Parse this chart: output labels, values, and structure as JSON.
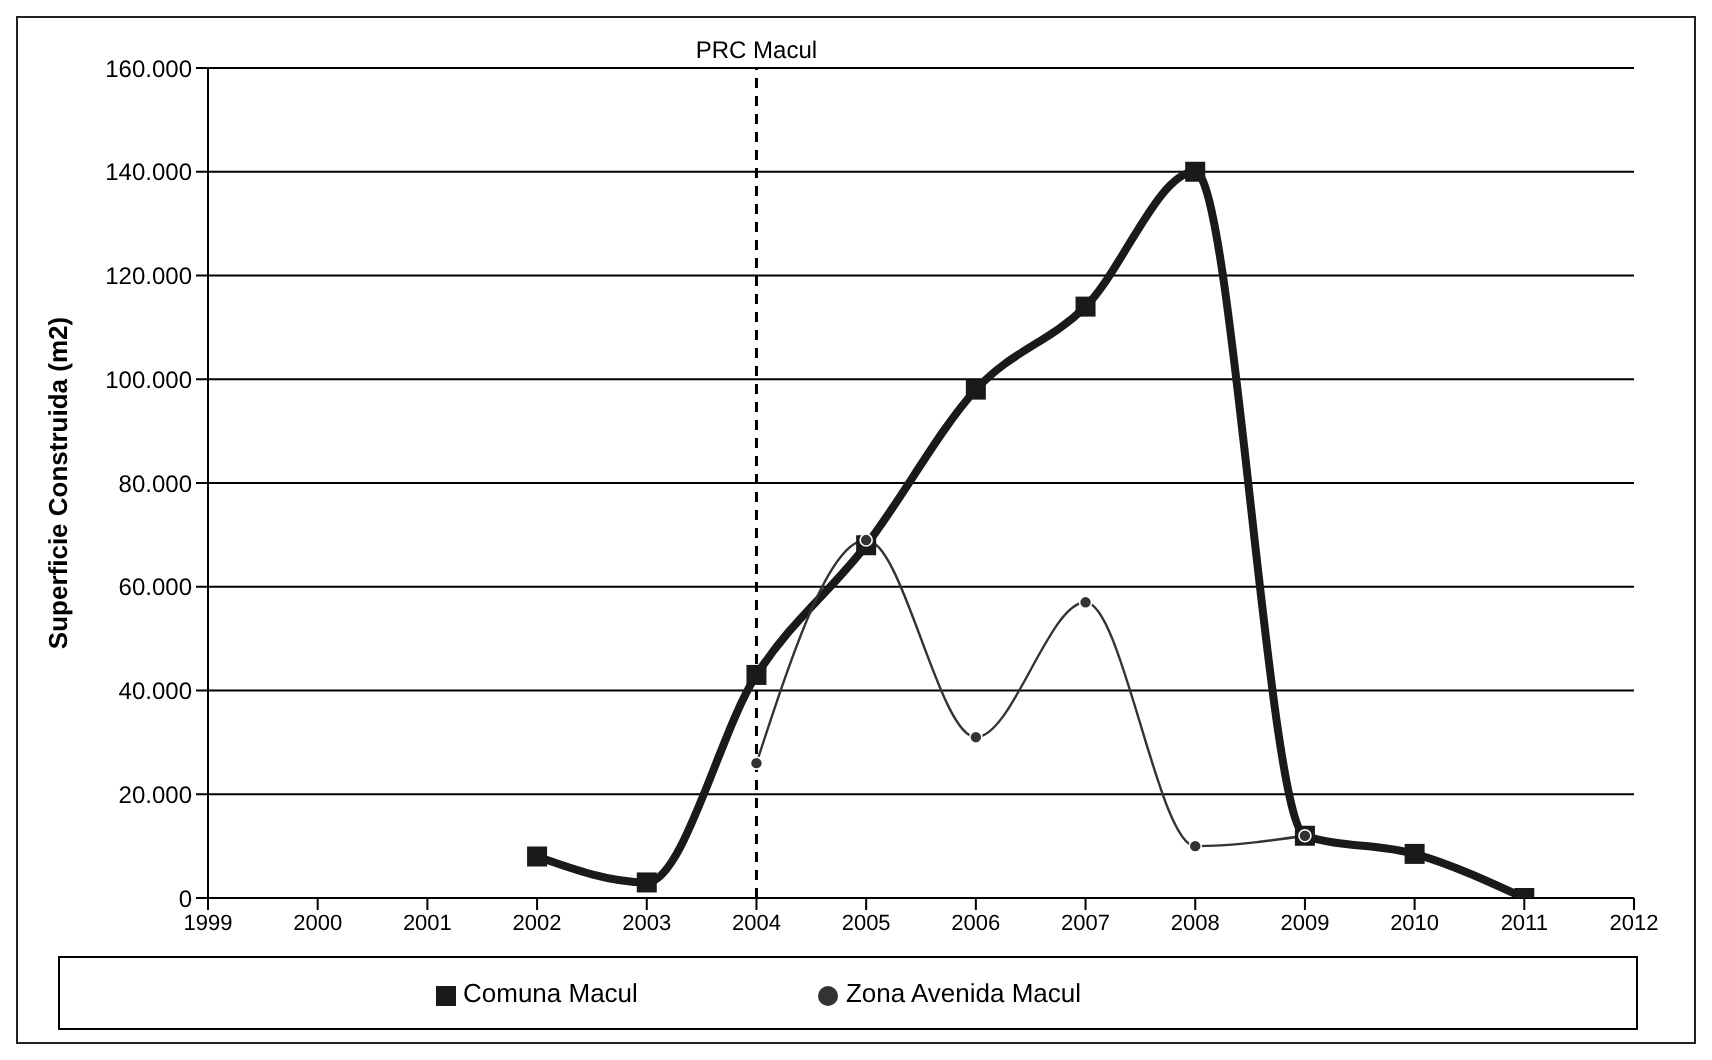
{
  "chart_data": {
    "type": "line",
    "ylabel": "Superficie Construida (m2)",
    "x": [
      2002,
      2003,
      2004,
      2005,
      2006,
      2007,
      2008,
      2009,
      2010,
      2011
    ],
    "xlim": [
      1999,
      2012
    ],
    "xticks": [
      1999,
      2000,
      2001,
      2002,
      2003,
      2004,
      2005,
      2006,
      2007,
      2008,
      2009,
      2010,
      2011,
      2012
    ],
    "ylim": [
      0,
      160000
    ],
    "yticks": [
      0,
      {
        "value": 20000,
        "label": "20.000"
      },
      {
        "value": 40000,
        "label": "40.000"
      },
      {
        "value": 60000,
        "label": "60.000"
      },
      {
        "value": 80000,
        "label": "80.000"
      },
      {
        "value": 100000,
        "label": "100.000"
      },
      {
        "value": 120000,
        "label": "120.000"
      },
      {
        "value": 140000,
        "label": "140.000"
      },
      {
        "value": 160000,
        "label": "160.000"
      }
    ],
    "grid": "y",
    "legend": "bottom",
    "line_style": "solid",
    "ref_lines": [
      {
        "axis": "x",
        "value": 2004,
        "label": "PRC Macul",
        "line_style": "dashed",
        "color": "#000000"
      }
    ],
    "series": [
      {
        "name": "Comuna Macul",
        "color": "#1a1a1a",
        "marker": "square",
        "values": [
          8000,
          3000,
          43000,
          68000,
          98000,
          114000,
          140000,
          12000,
          8500,
          0
        ]
      },
      {
        "name": "Zona Avenida Macul",
        "color": "#333333",
        "marker": "circle",
        "values": [
          null,
          null,
          26000,
          69000,
          31000,
          57000,
          10000,
          12000,
          null,
          null
        ]
      }
    ]
  }
}
